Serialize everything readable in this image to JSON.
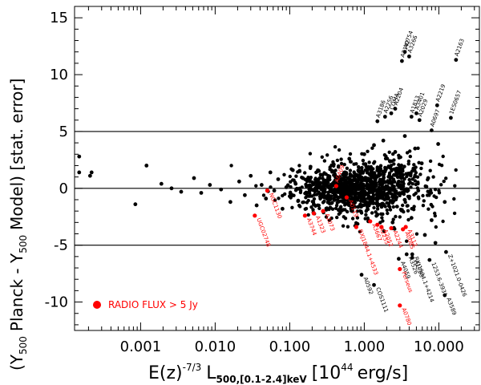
{
  "chart_data": {
    "type": "scatter",
    "xscale": "log",
    "xlim": [
      0.00013,
      35
    ],
    "ylim": [
      -12.5,
      16
    ],
    "x_ticks": [
      {
        "value": 0.001,
        "label": "0.001"
      },
      {
        "value": 0.01,
        "label": "0.010"
      },
      {
        "value": 0.1,
        "label": "0.100"
      },
      {
        "value": 1,
        "label": "1.000"
      },
      {
        "value": 10,
        "label": "10.000"
      }
    ],
    "y_ticks": [
      {
        "value": -10,
        "label": "-10"
      },
      {
        "value": -5,
        "label": "-5"
      },
      {
        "value": 0,
        "label": "0"
      },
      {
        "value": 5,
        "label": "5"
      },
      {
        "value": 10,
        "label": "10"
      },
      {
        "value": 15,
        "label": "15"
      }
    ],
    "xlabel": {
      "E": "E(z)",
      "exp": "-7/3",
      "L": "L",
      "sub": "500,[0.1-2.4]keV",
      "units": "[10",
      "units_exp": "44",
      "units_end": "erg/s]"
    },
    "ylabel": {
      "open": "(Y",
      "sub1": "500",
      "mid": "Planck - Y",
      "sub2": "500",
      "close": "Model) [stat. error]"
    },
    "hlines": [
      5,
      0,
      -5
    ],
    "grid": false,
    "colors": {
      "points": "#000000",
      "radio": "#ff0000"
    },
    "legend": {
      "label": "RADIO FLUX > 5 Jy",
      "position": "bottom-left"
    },
    "annotations": [
      {
        "text": "A2163",
        "x": 17,
        "y": 11.3,
        "color": "black"
      },
      {
        "text": "A0754",
        "x": 3.5,
        "y": 12.0,
        "color": "black"
      },
      {
        "text": "A3266",
        "x": 4.0,
        "y": 11.6,
        "color": "black"
      },
      {
        "text": "A2142",
        "x": 3.2,
        "y": 11.2,
        "color": "black"
      },
      {
        "text": "1ES0657",
        "x": 14.5,
        "y": 6.2,
        "color": "black"
      },
      {
        "text": "A2219",
        "x": 9.5,
        "y": 7.3,
        "color": "black"
      },
      {
        "text": "A0697",
        "x": 8.0,
        "y": 5.1,
        "color": "black"
      },
      {
        "text": "A3401",
        "x": 5.0,
        "y": 6.6,
        "color": "black"
      },
      {
        "text": "A1813",
        "x": 4.3,
        "y": 6.3,
        "color": "black"
      },
      {
        "text": "A2256",
        "x": 1.9,
        "y": 6.3,
        "color": "black"
      },
      {
        "text": "A3186",
        "x": 1.5,
        "y": 5.9,
        "color": "black"
      },
      {
        "text": "A2204",
        "x": 2.6,
        "y": 7.0,
        "color": "black"
      },
      {
        "text": "COMA",
        "x": 2.3,
        "y": 6.6,
        "color": "black"
      },
      {
        "text": "A2029",
        "x": 5.5,
        "y": 6.0,
        "color": "black"
      },
      {
        "text": "UGC02748",
        "x": 0.034,
        "y": -2.4,
        "color": "red"
      },
      {
        "text": "NGC1130",
        "x": 0.05,
        "y": -0.2,
        "color": "red"
      },
      {
        "text": "A3744",
        "x": 0.16,
        "y": -2.4,
        "color": "red"
      },
      {
        "text": "A1323",
        "x": 0.21,
        "y": -2.2,
        "color": "red"
      },
      {
        "text": "A2073",
        "x": 0.28,
        "y": -2.0,
        "color": "red"
      },
      {
        "text": "A0409",
        "x": 0.42,
        "y": 0.2,
        "color": "red"
      },
      {
        "text": "A0119",
        "x": 0.58,
        "y": -0.8,
        "color": "red"
      },
      {
        "text": "RXJ1844.1+4533",
        "x": 0.78,
        "y": -3.4,
        "color": "red"
      },
      {
        "text": "A2255",
        "x": 1.5,
        "y": -3.2,
        "color": "red"
      },
      {
        "text": "A3667",
        "x": 1.2,
        "y": -2.9,
        "color": "red"
      },
      {
        "text": "A2052",
        "x": 1.7,
        "y": -3.4,
        "color": "red"
      },
      {
        "text": "A2244",
        "x": 2.3,
        "y": -3.5,
        "color": "red"
      },
      {
        "text": "A0085",
        "x": 3.3,
        "y": -3.6,
        "color": "red"
      },
      {
        "text": "A3112",
        "x": 3.6,
        "y": -3.4,
        "color": "red"
      },
      {
        "text": "Perseus",
        "x": 3.0,
        "y": -7.1,
        "color": "red"
      },
      {
        "text": "A0780",
        "x": 3.0,
        "y": -10.3,
        "color": "red"
      },
      {
        "text": "A0592",
        "x": 0.92,
        "y": -7.6,
        "color": "black"
      },
      {
        "text": "COS1111",
        "x": 1.35,
        "y": -8.5,
        "color": "black"
      },
      {
        "text": "A4059",
        "x": 2.9,
        "y": -6.2,
        "color": "black"
      },
      {
        "text": "A3526",
        "x": 3.7,
        "y": -5.8,
        "color": "black"
      },
      {
        "text": "A1795",
        "x": 4.4,
        "y": -6.1,
        "color": "black"
      },
      {
        "text": "RXJ1504.1+4214",
        "x": 4.4,
        "y": -5.8,
        "color": "black"
      },
      {
        "text": "Z+1021.0-0426",
        "x": 12.5,
        "y": -5.6,
        "color": "black"
      },
      {
        "text": "1253.6-3931",
        "x": 7.5,
        "y": -6.3,
        "color": "black"
      },
      {
        "text": "A3589",
        "x": 12.0,
        "y": -9.4,
        "color": "black"
      }
    ],
    "radio_points": [
      {
        "x": 0.034,
        "y": -2.4
      },
      {
        "x": 0.05,
        "y": -0.2
      },
      {
        "x": 0.16,
        "y": -2.4
      },
      {
        "x": 0.21,
        "y": -2.2
      },
      {
        "x": 0.28,
        "y": -2.0
      },
      {
        "x": 0.42,
        "y": 0.2
      },
      {
        "x": 0.58,
        "y": -0.8
      },
      {
        "x": 0.78,
        "y": -3.4
      },
      {
        "x": 1.2,
        "y": -2.9
      },
      {
        "x": 1.5,
        "y": -3.2
      },
      {
        "x": 1.7,
        "y": -3.4
      },
      {
        "x": 2.3,
        "y": -3.5
      },
      {
        "x": 3.3,
        "y": -3.6
      },
      {
        "x": 3.6,
        "y": -3.4
      },
      {
        "x": 3.0,
        "y": -7.1
      },
      {
        "x": 3.0,
        "y": -10.3
      }
    ],
    "black_points": [
      {
        "x": 0.00015,
        "y": 2.8
      },
      {
        "x": 0.00015,
        "y": 1.4
      },
      {
        "x": 0.00021,
        "y": 1.1
      },
      {
        "x": 0.00022,
        "y": 1.4
      },
      {
        "x": 0.00085,
        "y": -1.4
      },
      {
        "x": 0.0012,
        "y": 2.0
      },
      {
        "x": 0.0019,
        "y": 0.4
      },
      {
        "x": 0.0026,
        "y": 0.0
      },
      {
        "x": 0.0035,
        "y": -0.3
      },
      {
        "x": 0.0052,
        "y": 0.9
      },
      {
        "x": 0.0065,
        "y": -0.4
      },
      {
        "x": 0.0085,
        "y": 0.3
      },
      {
        "x": 0.012,
        "y": -0.1
      },
      {
        "x": 0.016,
        "y": -1.2
      },
      {
        "x": 0.021,
        "y": 0.6
      },
      {
        "x": 0.025,
        "y": -0.6
      },
      {
        "x": 0.03,
        "y": 1.1
      },
      {
        "x": 0.036,
        "y": -1.5
      },
      {
        "x": 0.042,
        "y": 0.3
      },
      {
        "x": 0.048,
        "y": -0.9
      },
      {
        "x": 0.055,
        "y": 1.4
      },
      {
        "x": 0.062,
        "y": -0.2
      },
      {
        "x": 0.07,
        "y": 0.8
      },
      {
        "x": 0.08,
        "y": -1.8
      },
      {
        "x": 0.09,
        "y": 0.1
      },
      {
        "x": 0.1,
        "y": -0.7
      },
      {
        "x": 0.11,
        "y": 1.6
      },
      {
        "x": 0.12,
        "y": 0.4
      },
      {
        "x": 0.13,
        "y": -1.1
      },
      {
        "x": 0.15,
        "y": 0.9
      },
      {
        "x": 0.17,
        "y": -0.4
      },
      {
        "x": 0.19,
        "y": 1.9
      },
      {
        "x": 0.21,
        "y": -1.4
      },
      {
        "x": 0.23,
        "y": 0.2
      },
      {
        "x": 0.26,
        "y": 1.2
      },
      {
        "x": 0.29,
        "y": -0.8
      },
      {
        "x": 0.32,
        "y": 0.6
      },
      {
        "x": 0.35,
        "y": -1.7
      },
      {
        "x": 0.39,
        "y": 2.1
      },
      {
        "x": 0.43,
        "y": -0.3
      },
      {
        "x": 0.47,
        "y": 1.0
      },
      {
        "x": 0.52,
        "y": -1.2
      },
      {
        "x": 0.57,
        "y": 0.5
      },
      {
        "x": 0.63,
        "y": 2.6
      },
      {
        "x": 0.69,
        "y": -2.0
      },
      {
        "x": 0.76,
        "y": 0.0
      },
      {
        "x": 0.84,
        "y": 1.5
      },
      {
        "x": 0.92,
        "y": -0.9
      },
      {
        "x": 1.0,
        "y": 3.0
      },
      {
        "x": 1.1,
        "y": -1.6
      },
      {
        "x": 1.2,
        "y": 0.8
      },
      {
        "x": 1.35,
        "y": 3.8
      },
      {
        "x": 1.5,
        "y": -2.3
      },
      {
        "x": 1.65,
        "y": 1.7
      },
      {
        "x": 1.8,
        "y": 4.2
      },
      {
        "x": 2.0,
        "y": -0.5
      },
      {
        "x": 2.2,
        "y": 2.4
      },
      {
        "x": 2.4,
        "y": -3.0
      },
      {
        "x": 2.6,
        "y": 3.2
      },
      {
        "x": 2.9,
        "y": 0.6
      },
      {
        "x": 3.2,
        "y": -1.9
      },
      {
        "x": 3.5,
        "y": 4.6
      },
      {
        "x": 3.9,
        "y": 1.3
      },
      {
        "x": 4.3,
        "y": -2.6
      },
      {
        "x": 4.8,
        "y": 3.5
      },
      {
        "x": 5.3,
        "y": -0.2
      },
      {
        "x": 5.9,
        "y": 2.2
      },
      {
        "x": 6.5,
        "y": -4.1
      },
      {
        "x": 7.2,
        "y": 0.9
      },
      {
        "x": 8.0,
        "y": -2.8
      },
      {
        "x": 9.0,
        "y": -4.8
      },
      {
        "x": 9.8,
        "y": 3.9
      },
      {
        "x": 12.0,
        "y": -1.2
      },
      {
        "x": 17.0,
        "y": 11.3
      },
      {
        "x": 3.5,
        "y": 12.0
      },
      {
        "x": 4.0,
        "y": 11.6
      },
      {
        "x": 3.2,
        "y": 11.2
      },
      {
        "x": 14.5,
        "y": 6.2
      },
      {
        "x": 9.5,
        "y": 7.3
      },
      {
        "x": 8.0,
        "y": 5.1
      },
      {
        "x": 5.0,
        "y": 6.6
      },
      {
        "x": 4.3,
        "y": 6.3
      },
      {
        "x": 1.9,
        "y": 6.3
      },
      {
        "x": 1.5,
        "y": 5.9
      },
      {
        "x": 2.6,
        "y": 7.0
      },
      {
        "x": 2.3,
        "y": 6.6
      },
      {
        "x": 5.5,
        "y": 6.0
      },
      {
        "x": 0.92,
        "y": -7.6
      },
      {
        "x": 1.35,
        "y": -8.5
      },
      {
        "x": 2.9,
        "y": -6.2
      },
      {
        "x": 3.7,
        "y": -5.8
      },
      {
        "x": 4.4,
        "y": -6.1
      },
      {
        "x": 12.5,
        "y": -5.6
      },
      {
        "x": 7.5,
        "y": -6.3
      },
      {
        "x": 12.0,
        "y": -9.4
      },
      {
        "x": 4.4,
        "y": -5.8
      }
    ],
    "point_cloud": {
      "count": 1100,
      "x_median": 0.9,
      "x_sigma_log10": 0.45,
      "y_sigma": 1.3
    }
  }
}
